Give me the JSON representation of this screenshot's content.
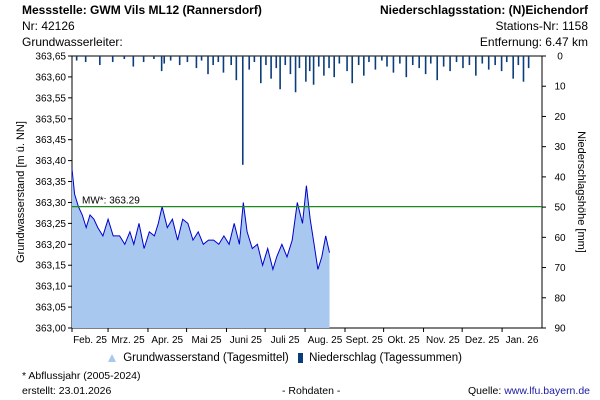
{
  "header": {
    "station_title": "Messstelle: GWM Vils ML12 (Rannersdorf)",
    "station_nr": "Nr: 42126",
    "aquifer_label": "Grundwasserleiter:",
    "precip_station": "Niederschlagsstation: (N)Eichendorf",
    "precip_station_nr": "Stations-Nr: 1158",
    "distance": "Entfernung: 6.47 km"
  },
  "chart_data": {
    "type": "area",
    "ylabel_left": "Grundwasserstand [m ü. NN]",
    "ylabel_right": "Niederschlagshöhe [mm]",
    "ylim_left": [
      363.0,
      363.65
    ],
    "yticks_left": [
      "363,00",
      "363,05",
      "363,10",
      "363,15",
      "363,20",
      "363,25",
      "363,30",
      "363,35",
      "363,40",
      "363,45",
      "363,50",
      "363,55",
      "363,60",
      "363,65"
    ],
    "ylim_right": [
      0,
      90
    ],
    "yticks_right": [
      "0",
      "10",
      "20",
      "30",
      "40",
      "50",
      "60",
      "70",
      "80",
      "90"
    ],
    "x_range": [
      "2025-02-01",
      "2026-02-01"
    ],
    "month_labels": [
      "Feb. 25",
      "Mrz. 25",
      "Apr. 25",
      "Mai 25",
      "Juni 25",
      "Juli 25",
      "Aug. 25",
      "Sept. 25",
      "Okt. 25",
      "Nov. 25",
      "Dez. 25",
      "Jan. 26"
    ],
    "mean_value": 363.29,
    "mean_label": "MW*: 363.29",
    "groundwater_series": {
      "name": "Grundwasserstand (Tagesmittel)",
      "color": "#a8c8f0",
      "line_color": "#0000cc",
      "points": [
        [
          "2025-02-01",
          363.38
        ],
        [
          "2025-02-03",
          363.32
        ],
        [
          "2025-02-06",
          363.29
        ],
        [
          "2025-02-09",
          363.27
        ],
        [
          "2025-02-12",
          363.24
        ],
        [
          "2025-02-15",
          363.27
        ],
        [
          "2025-02-18",
          363.26
        ],
        [
          "2025-02-21",
          363.24
        ],
        [
          "2025-02-25",
          363.22
        ],
        [
          "2025-03-01",
          363.26
        ],
        [
          "2025-03-05",
          363.22
        ],
        [
          "2025-03-10",
          363.22
        ],
        [
          "2025-03-14",
          363.2
        ],
        [
          "2025-03-18",
          363.23
        ],
        [
          "2025-03-21",
          363.2
        ],
        [
          "2025-03-25",
          363.25
        ],
        [
          "2025-03-29",
          363.19
        ],
        [
          "2025-04-02",
          363.23
        ],
        [
          "2025-04-06",
          363.22
        ],
        [
          "2025-04-09",
          363.25
        ],
        [
          "2025-04-12",
          363.29
        ],
        [
          "2025-04-16",
          363.24
        ],
        [
          "2025-04-20",
          363.26
        ],
        [
          "2025-04-24",
          363.21
        ],
        [
          "2025-04-28",
          363.26
        ],
        [
          "2025-05-02",
          363.25
        ],
        [
          "2025-05-06",
          363.21
        ],
        [
          "2025-05-10",
          363.23
        ],
        [
          "2025-05-14",
          363.2
        ],
        [
          "2025-05-18",
          363.21
        ],
        [
          "2025-05-22",
          363.21
        ],
        [
          "2025-05-26",
          363.2
        ],
        [
          "2025-05-30",
          363.22
        ],
        [
          "2025-06-03",
          363.2
        ],
        [
          "2025-06-07",
          363.25
        ],
        [
          "2025-06-11",
          363.2
        ],
        [
          "2025-06-14",
          363.3
        ],
        [
          "2025-06-17",
          363.23
        ],
        [
          "2025-06-21",
          363.19
        ],
        [
          "2025-06-25",
          363.2
        ],
        [
          "2025-06-29",
          363.15
        ],
        [
          "2025-07-03",
          363.19
        ],
        [
          "2025-07-07",
          363.14
        ],
        [
          "2025-07-10",
          363.17
        ],
        [
          "2025-07-14",
          363.2
        ],
        [
          "2025-07-18",
          363.17
        ],
        [
          "2025-07-22",
          363.21
        ],
        [
          "2025-07-26",
          363.3
        ],
        [
          "2025-07-30",
          363.25
        ],
        [
          "2025-08-02",
          363.34
        ],
        [
          "2025-08-05",
          363.26
        ],
        [
          "2025-08-08",
          363.2
        ],
        [
          "2025-08-11",
          363.14
        ],
        [
          "2025-08-14",
          363.17
        ],
        [
          "2025-08-17",
          363.22
        ],
        [
          "2025-08-20",
          363.18
        ]
      ]
    },
    "precip_series": {
      "name": "Niederschlag (Tagessummen)",
      "color": "#0a3d7a",
      "values": [
        [
          "2025-02-04",
          1.5
        ],
        [
          "2025-02-11",
          2.0
        ],
        [
          "2025-02-22",
          3.0
        ],
        [
          "2025-03-04",
          2.0
        ],
        [
          "2025-03-13",
          1.0
        ],
        [
          "2025-03-20",
          3.5
        ],
        [
          "2025-03-28",
          2.0
        ],
        [
          "2025-04-05",
          1.0
        ],
        [
          "2025-04-11",
          5.0
        ],
        [
          "2025-04-13",
          2.5
        ],
        [
          "2025-04-18",
          1.5
        ],
        [
          "2025-04-25",
          3.0
        ],
        [
          "2025-05-01",
          2.0
        ],
        [
          "2025-05-08",
          4.0
        ],
        [
          "2025-05-12",
          1.5
        ],
        [
          "2025-05-17",
          6.0
        ],
        [
          "2025-05-21",
          3.0
        ],
        [
          "2025-05-25",
          2.0
        ],
        [
          "2025-05-29",
          5.5
        ],
        [
          "2025-06-04",
          3.0
        ],
        [
          "2025-06-08",
          8.0
        ],
        [
          "2025-06-13",
          36.0
        ],
        [
          "2025-06-18",
          4.5
        ],
        [
          "2025-06-22",
          2.0
        ],
        [
          "2025-06-27",
          9.0
        ],
        [
          "2025-07-01",
          3.0
        ],
        [
          "2025-07-05",
          7.5
        ],
        [
          "2025-07-09",
          4.0
        ],
        [
          "2025-07-12",
          11.0
        ],
        [
          "2025-07-16",
          3.0
        ],
        [
          "2025-07-20",
          6.0
        ],
        [
          "2025-07-24",
          12.0
        ],
        [
          "2025-07-27",
          4.0
        ],
        [
          "2025-08-01",
          8.5
        ],
        [
          "2025-08-04",
          5.0
        ],
        [
          "2025-08-07",
          9.5
        ],
        [
          "2025-08-11",
          3.5
        ],
        [
          "2025-08-15",
          6.5
        ],
        [
          "2025-08-19",
          4.0
        ],
        [
          "2025-08-23",
          7.0
        ],
        [
          "2025-08-27",
          2.5
        ],
        [
          "2025-09-02",
          5.0
        ],
        [
          "2025-09-06",
          9.0
        ],
        [
          "2025-09-11",
          3.0
        ],
        [
          "2025-09-15",
          6.5
        ],
        [
          "2025-09-19",
          2.0
        ],
        [
          "2025-09-24",
          4.5
        ],
        [
          "2025-09-29",
          1.5
        ],
        [
          "2025-10-03",
          3.5
        ],
        [
          "2025-10-08",
          5.5
        ],
        [
          "2025-10-13",
          2.5
        ],
        [
          "2025-10-18",
          7.0
        ],
        [
          "2025-10-23",
          3.0
        ],
        [
          "2025-10-28",
          4.0
        ],
        [
          "2025-11-02",
          6.0
        ],
        [
          "2025-11-06",
          2.5
        ],
        [
          "2025-11-11",
          8.0
        ],
        [
          "2025-11-16",
          3.5
        ],
        [
          "2025-11-21",
          5.0
        ],
        [
          "2025-11-26",
          2.0
        ],
        [
          "2025-12-01",
          4.0
        ],
        [
          "2025-12-06",
          3.0
        ],
        [
          "2025-12-11",
          6.5
        ],
        [
          "2025-12-16",
          2.5
        ],
        [
          "2025-12-21",
          4.5
        ],
        [
          "2025-12-26",
          3.0
        ],
        [
          "2025-12-31",
          5.0
        ],
        [
          "2026-01-04",
          2.0
        ],
        [
          "2026-01-09",
          7.5
        ],
        [
          "2026-01-13",
          3.0
        ],
        [
          "2026-01-17",
          8.5
        ],
        [
          "2026-01-21",
          4.0
        ]
      ]
    },
    "mean_line_color": "#1a8a1a",
    "grid": true,
    "legend_position": "bottom"
  },
  "legend": {
    "gw_label": "Grundwasserstand (Tagesmittel)",
    "precip_label": "Niederschlag (Tagessummen)"
  },
  "footer": {
    "footnote": "* Abflussjahr (2005-2024)",
    "created": "erstellt:  23.01.2026",
    "raw": "- Rohdaten -",
    "source_label": "Quelle:",
    "source_url": "www.lfu.bayern.de"
  }
}
